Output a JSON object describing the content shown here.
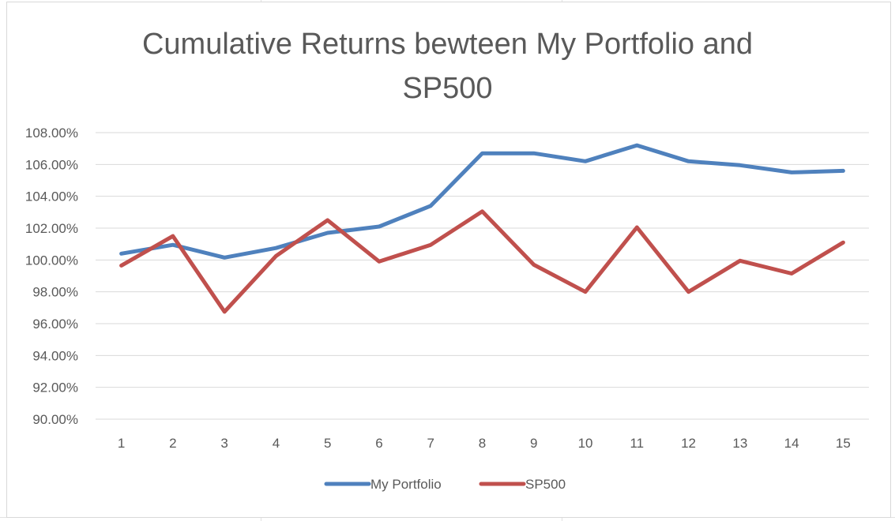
{
  "chart_data": {
    "type": "line",
    "title_lines": [
      "Cumulative Returns bewteen My Portfolio and",
      "SP500"
    ],
    "x": [
      1,
      2,
      3,
      4,
      5,
      6,
      7,
      8,
      9,
      10,
      11,
      12,
      13,
      14,
      15
    ],
    "series": [
      {
        "name": "My Portfolio",
        "color": "#4f81bd",
        "values": [
          100.4,
          100.95,
          100.15,
          100.75,
          101.7,
          102.1,
          103.4,
          106.7,
          106.7,
          106.2,
          107.2,
          106.2,
          105.95,
          105.5,
          105.6
        ]
      },
      {
        "name": "SP500",
        "color": "#c0504d",
        "values": [
          99.65,
          101.5,
          96.75,
          100.25,
          102.5,
          99.9,
          100.95,
          103.05,
          99.7,
          98.0,
          102.05,
          98.0,
          99.95,
          99.15,
          101.1
        ]
      }
    ],
    "y_ticks": [
      "90.00%",
      "92.00%",
      "94.00%",
      "96.00%",
      "98.00%",
      "100.00%",
      "102.00%",
      "104.00%",
      "106.00%",
      "108.00%"
    ],
    "ylim": [
      90,
      108
    ],
    "grid": true,
    "legend_position": "bottom"
  }
}
